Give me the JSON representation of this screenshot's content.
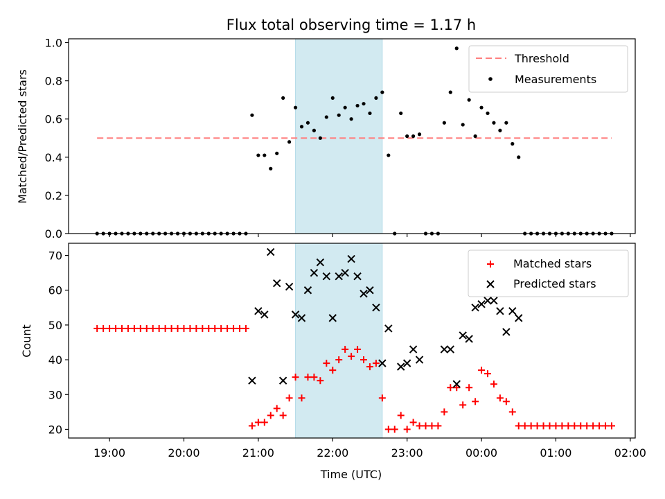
{
  "title": "Flux total observing time = 1.17 h",
  "colors": {
    "threshold": "#ff7f7f",
    "measurement": "#000000",
    "matched": "#ff0000",
    "predicted": "#000000",
    "shade": "#add8e6"
  },
  "chart_data": [
    {
      "type": "scatter",
      "ylabel": "Matched/Predicted stars",
      "xlabel": "",
      "xlim": [
        "18:27",
        "02:04"
      ],
      "ylim": [
        0,
        1.02
      ],
      "yticks": [
        "0.0",
        "0.2",
        "0.4",
        "0.6",
        "0.8",
        "1.0"
      ],
      "legend_position": "top-right",
      "shaded_interval": [
        "21:30",
        "22:40"
      ],
      "threshold": {
        "name": "Threshold",
        "value": 0.5,
        "x": [
          "18:50",
          "01:45"
        ]
      },
      "series": [
        {
          "name": "Measurements",
          "points": [
            [
              "18:50",
              0
            ],
            [
              "18:55",
              0
            ],
            [
              "19:00",
              0
            ],
            [
              "19:05",
              0
            ],
            [
              "19:10",
              0
            ],
            [
              "19:15",
              0
            ],
            [
              "19:20",
              0
            ],
            [
              "19:25",
              0
            ],
            [
              "19:30",
              0
            ],
            [
              "19:35",
              0
            ],
            [
              "19:40",
              0
            ],
            [
              "19:45",
              0
            ],
            [
              "19:50",
              0
            ],
            [
              "19:55",
              0
            ],
            [
              "20:00",
              0
            ],
            [
              "20:05",
              0
            ],
            [
              "20:10",
              0
            ],
            [
              "20:15",
              0
            ],
            [
              "20:20",
              0
            ],
            [
              "20:25",
              0
            ],
            [
              "20:30",
              0
            ],
            [
              "20:35",
              0
            ],
            [
              "20:40",
              0
            ],
            [
              "20:45",
              0
            ],
            [
              "20:50",
              0
            ],
            [
              "20:55",
              0.62
            ],
            [
              "21:00",
              0.41
            ],
            [
              "21:05",
              0.41
            ],
            [
              "21:10",
              0.34
            ],
            [
              "21:15",
              0.42
            ],
            [
              "21:20",
              0.71
            ],
            [
              "21:25",
              0.48
            ],
            [
              "21:30",
              0.66
            ],
            [
              "21:35",
              0.56
            ],
            [
              "21:40",
              0.58
            ],
            [
              "21:45",
              0.54
            ],
            [
              "21:50",
              0.5
            ],
            [
              "21:55",
              0.61
            ],
            [
              "22:00",
              0.71
            ],
            [
              "22:05",
              0.62
            ],
            [
              "22:10",
              0.66
            ],
            [
              "22:15",
              0.6
            ],
            [
              "22:20",
              0.67
            ],
            [
              "22:25",
              0.68
            ],
            [
              "22:30",
              0.63
            ],
            [
              "22:35",
              0.71
            ],
            [
              "22:40",
              0.74
            ],
            [
              "22:45",
              0.41
            ],
            [
              "22:50",
              0
            ],
            [
              "23:15",
              0
            ],
            [
              "23:20",
              0
            ],
            [
              "23:25",
              0
            ],
            [
              "22:55",
              0.63
            ],
            [
              "23:00",
              0.51
            ],
            [
              "23:05",
              0.51
            ],
            [
              "23:10",
              0.52
            ],
            [
              "23:30",
              0.58
            ],
            [
              "23:35",
              0.74
            ],
            [
              "23:40",
              0.97
            ],
            [
              "23:45",
              0.57
            ],
            [
              "23:50",
              0.7
            ],
            [
              "23:55",
              0.51
            ],
            [
              "00:00",
              0.66
            ],
            [
              "00:05",
              0.63
            ],
            [
              "00:10",
              0.58
            ],
            [
              "00:15",
              0.54
            ],
            [
              "00:20",
              0.58
            ],
            [
              "00:25",
              0.47
            ],
            [
              "00:30",
              0.4
            ],
            [
              "00:35",
              0
            ],
            [
              "00:40",
              0
            ],
            [
              "00:45",
              0
            ],
            [
              "00:50",
              0
            ],
            [
              "00:55",
              0
            ],
            [
              "01:00",
              0
            ],
            [
              "01:05",
              0
            ],
            [
              "01:10",
              0
            ],
            [
              "01:15",
              0
            ],
            [
              "01:20",
              0
            ],
            [
              "01:25",
              0
            ],
            [
              "01:30",
              0
            ],
            [
              "01:35",
              0
            ],
            [
              "01:40",
              0
            ],
            [
              "01:45",
              0
            ]
          ]
        }
      ]
    },
    {
      "type": "scatter",
      "ylabel": "Count",
      "xlabel": "Time (UTC)",
      "xlim": [
        "18:27",
        "02:04"
      ],
      "ylim": [
        17.5,
        73.5
      ],
      "yticks": [
        "20",
        "30",
        "40",
        "50",
        "60",
        "70"
      ],
      "xticks": [
        "19:00",
        "20:00",
        "21:00",
        "22:00",
        "23:00",
        "00:00",
        "01:00",
        "02:00"
      ],
      "legend_position": "top-right",
      "shaded_interval": [
        "21:30",
        "22:40"
      ],
      "series": [
        {
          "name": "Matched stars",
          "marker": "plus",
          "points": [
            [
              "18:50",
              49
            ],
            [
              "18:55",
              49
            ],
            [
              "19:00",
              49
            ],
            [
              "19:05",
              49
            ],
            [
              "19:10",
              49
            ],
            [
              "19:15",
              49
            ],
            [
              "19:20",
              49
            ],
            [
              "19:25",
              49
            ],
            [
              "19:30",
              49
            ],
            [
              "19:35",
              49
            ],
            [
              "19:40",
              49
            ],
            [
              "19:45",
              49
            ],
            [
              "19:50",
              49
            ],
            [
              "19:55",
              49
            ],
            [
              "20:00",
              49
            ],
            [
              "20:05",
              49
            ],
            [
              "20:10",
              49
            ],
            [
              "20:15",
              49
            ],
            [
              "20:20",
              49
            ],
            [
              "20:25",
              49
            ],
            [
              "20:30",
              49
            ],
            [
              "20:35",
              49
            ],
            [
              "20:40",
              49
            ],
            [
              "20:45",
              49
            ],
            [
              "20:50",
              49
            ],
            [
              "20:55",
              21
            ],
            [
              "21:00",
              22
            ],
            [
              "21:05",
              22
            ],
            [
              "21:10",
              24
            ],
            [
              "21:15",
              26
            ],
            [
              "21:20",
              24
            ],
            [
              "21:25",
              29
            ],
            [
              "21:30",
              35
            ],
            [
              "21:35",
              29
            ],
            [
              "21:40",
              35
            ],
            [
              "21:45",
              35
            ],
            [
              "21:50",
              34
            ],
            [
              "21:55",
              39
            ],
            [
              "22:00",
              37
            ],
            [
              "22:05",
              40
            ],
            [
              "22:10",
              43
            ],
            [
              "22:15",
              41
            ],
            [
              "22:20",
              43
            ],
            [
              "22:25",
              40
            ],
            [
              "22:30",
              38
            ],
            [
              "22:35",
              39
            ],
            [
              "22:40",
              29
            ],
            [
              "22:45",
              20
            ],
            [
              "22:50",
              20
            ],
            [
              "22:55",
              24
            ],
            [
              "23:00",
              20
            ],
            [
              "23:05",
              22
            ],
            [
              "23:10",
              21
            ],
            [
              "23:15",
              21
            ],
            [
              "23:20",
              21
            ],
            [
              "23:25",
              21
            ],
            [
              "23:30",
              25
            ],
            [
              "23:35",
              32
            ],
            [
              "23:40",
              32
            ],
            [
              "23:45",
              27
            ],
            [
              "23:50",
              32
            ],
            [
              "23:55",
              28
            ],
            [
              "00:00",
              37
            ],
            [
              "00:05",
              36
            ],
            [
              "00:10",
              33
            ],
            [
              "00:15",
              29
            ],
            [
              "00:20",
              28
            ],
            [
              "00:25",
              25
            ],
            [
              "00:30",
              21
            ],
            [
              "00:35",
              21
            ],
            [
              "00:40",
              21
            ],
            [
              "00:45",
              21
            ],
            [
              "00:50",
              21
            ],
            [
              "00:55",
              21
            ],
            [
              "01:00",
              21
            ],
            [
              "01:05",
              21
            ],
            [
              "01:10",
              21
            ],
            [
              "01:15",
              21
            ],
            [
              "01:20",
              21
            ],
            [
              "01:25",
              21
            ],
            [
              "01:30",
              21
            ],
            [
              "01:35",
              21
            ],
            [
              "01:40",
              21
            ],
            [
              "01:45",
              21
            ]
          ]
        },
        {
          "name": "Predicted stars",
          "marker": "x",
          "points": [
            [
              "20:55",
              34
            ],
            [
              "21:00",
              54
            ],
            [
              "21:05",
              53
            ],
            [
              "21:10",
              71
            ],
            [
              "21:15",
              62
            ],
            [
              "21:20",
              34
            ],
            [
              "21:25",
              61
            ],
            [
              "21:30",
              53
            ],
            [
              "21:35",
              52
            ],
            [
              "21:40",
              60
            ],
            [
              "21:45",
              65
            ],
            [
              "21:50",
              68
            ],
            [
              "21:55",
              64
            ],
            [
              "22:00",
              52
            ],
            [
              "22:05",
              64
            ],
            [
              "22:10",
              65
            ],
            [
              "22:15",
              69
            ],
            [
              "22:20",
              64
            ],
            [
              "22:25",
              59
            ],
            [
              "22:30",
              60
            ],
            [
              "22:35",
              55
            ],
            [
              "22:40",
              39
            ],
            [
              "22:45",
              49
            ],
            [
              "22:55",
              38
            ],
            [
              "23:00",
              39
            ],
            [
              "23:05",
              43
            ],
            [
              "23:10",
              40
            ],
            [
              "23:30",
              43
            ],
            [
              "23:35",
              43
            ],
            [
              "23:40",
              33
            ],
            [
              "23:45",
              47
            ],
            [
              "23:50",
              46
            ],
            [
              "23:55",
              55
            ],
            [
              "00:00",
              56
            ],
            [
              "00:05",
              57
            ],
            [
              "00:10",
              57
            ],
            [
              "00:15",
              54
            ],
            [
              "00:20",
              48
            ],
            [
              "00:25",
              54
            ],
            [
              "00:30",
              52
            ]
          ]
        }
      ]
    }
  ]
}
